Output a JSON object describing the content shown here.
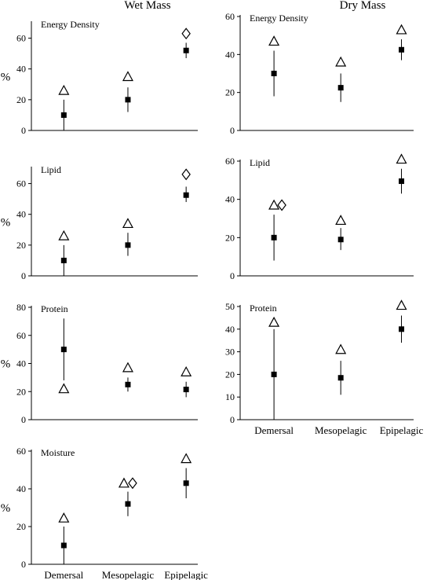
{
  "column_titles": {
    "wet": "Wet Mass",
    "dry": "Dry Mass"
  },
  "categories": [
    "Demersal",
    "Mesopelagic",
    "Epipelagic"
  ],
  "legend_note": "",
  "chart_data": [
    {
      "type": "scatter",
      "column": "Wet Mass",
      "title": "Energy Density",
      "ylabel": "%",
      "ylim": [
        0,
        70
      ],
      "yticks": [
        0,
        20,
        40,
        60
      ],
      "categories": [
        "Demersal",
        "Mesopelagic",
        "Epipelagic"
      ],
      "series": [
        {
          "kind": "mean_range",
          "points": [
            {
              "mean": 10,
              "low": 0,
              "high": 20
            },
            {
              "mean": 20,
              "low": 12,
              "high": 28
            },
            {
              "mean": 52,
              "low": 47,
              "high": 57
            }
          ]
        },
        {
          "kind": "triangle",
          "points": [
            {
              "cat": 0,
              "y": 26
            },
            {
              "cat": 1,
              "y": 35
            }
          ]
        },
        {
          "kind": "diamond",
          "points": [
            {
              "cat": 2,
              "y": 63
            }
          ]
        }
      ]
    },
    {
      "type": "scatter",
      "column": "Dry Mass",
      "title": "Energy Density",
      "ylabel": "",
      "ylim": [
        0,
        60
      ],
      "yticks": [
        0,
        20,
        40,
        60
      ],
      "categories": [
        "Demersal",
        "Mesopelagic",
        "Epipelagic"
      ],
      "series": [
        {
          "kind": "mean_range",
          "points": [
            {
              "mean": 30,
              "low": 18,
              "high": 42
            },
            {
              "mean": 22.5,
              "low": 15,
              "high": 30
            },
            {
              "mean": 42.5,
              "low": 37,
              "high": 48
            }
          ]
        },
        {
          "kind": "triangle",
          "points": [
            {
              "cat": 0,
              "y": 47
            },
            {
              "cat": 1,
              "y": 36
            },
            {
              "cat": 2,
              "y": 53
            }
          ]
        }
      ]
    },
    {
      "type": "scatter",
      "column": "Wet Mass",
      "title": "Lipid",
      "ylabel": "%",
      "ylim": [
        0,
        70
      ],
      "yticks": [
        0,
        20,
        40,
        60
      ],
      "categories": [
        "Demersal",
        "Mesopelagic",
        "Epipelagic"
      ],
      "series": [
        {
          "kind": "mean_range",
          "points": [
            {
              "mean": 10,
              "low": 0,
              "high": 20
            },
            {
              "mean": 20,
              "low": 13,
              "high": 28
            },
            {
              "mean": 52.5,
              "low": 48,
              "high": 58
            }
          ]
        },
        {
          "kind": "triangle",
          "points": [
            {
              "cat": 0,
              "y": 26
            },
            {
              "cat": 1,
              "y": 34
            }
          ]
        },
        {
          "kind": "diamond",
          "points": [
            {
              "cat": 2,
              "y": 66
            }
          ]
        }
      ]
    },
    {
      "type": "scatter",
      "column": "Dry Mass",
      "title": "Lipid",
      "ylabel": "",
      "ylim": [
        0,
        60
      ],
      "yticks": [
        0,
        20,
        40,
        60
      ],
      "categories": [
        "Demersal",
        "Mesopelagic",
        "Epipelagic"
      ],
      "series": [
        {
          "kind": "mean_range",
          "points": [
            {
              "mean": 20,
              "low": 8,
              "high": 32
            },
            {
              "mean": 19,
              "low": 13.5,
              "high": 25
            },
            {
              "mean": 49.5,
              "low": 43,
              "high": 56
            }
          ]
        },
        {
          "kind": "triangle",
          "points": [
            {
              "cat": 0,
              "y": 37
            },
            {
              "cat": 1,
              "y": 29
            },
            {
              "cat": 2,
              "y": 61
            }
          ]
        },
        {
          "kind": "diamond",
          "points": [
            {
              "cat": 0,
              "y": 37,
              "dx": 10
            }
          ]
        }
      ]
    },
    {
      "type": "scatter",
      "column": "Wet Mass",
      "title": "Protein",
      "ylabel": "%",
      "ylim": [
        0,
        80
      ],
      "yticks": [
        0,
        20,
        40,
        60,
        80
      ],
      "categories": [
        "Demersal",
        "Mesopelagic",
        "Epipelagic"
      ],
      "series": [
        {
          "kind": "mean_range",
          "points": [
            {
              "mean": 50,
              "low": 28,
              "high": 72
            },
            {
              "mean": 25,
              "low": 20,
              "high": 30
            },
            {
              "mean": 21.5,
              "low": 16,
              "high": 27
            }
          ]
        },
        {
          "kind": "triangle",
          "points": [
            {
              "cat": 0,
              "y": 22
            },
            {
              "cat": 1,
              "y": 37
            },
            {
              "cat": 2,
              "y": 34
            }
          ]
        }
      ]
    },
    {
      "type": "scatter",
      "column": "Dry Mass",
      "title": "Protein",
      "ylabel": "",
      "ylim": [
        0,
        50
      ],
      "yticks": [
        0,
        10,
        20,
        30,
        40,
        50
      ],
      "categories": [
        "Demersal",
        "Mesopelagic",
        "Epipelagic"
      ],
      "show_categories": true,
      "series": [
        {
          "kind": "mean_range",
          "points": [
            {
              "mean": 20,
              "low": 0,
              "high": 40
            },
            {
              "mean": 18.5,
              "low": 11,
              "high": 26
            },
            {
              "mean": 40,
              "low": 34,
              "high": 46
            }
          ]
        },
        {
          "kind": "triangle",
          "points": [
            {
              "cat": 0,
              "y": 43
            },
            {
              "cat": 1,
              "y": 31
            },
            {
              "cat": 2,
              "y": 50.5
            }
          ]
        }
      ]
    },
    {
      "type": "scatter",
      "column": "Wet Mass",
      "title": "Moisture",
      "ylabel": "%",
      "ylim": [
        0,
        60
      ],
      "yticks": [
        0,
        20,
        40,
        60
      ],
      "categories": [
        "Demersal",
        "Mesopelagic",
        "Epipelagic"
      ],
      "show_categories": true,
      "series": [
        {
          "kind": "mean_range",
          "points": [
            {
              "mean": 10,
              "low": 0,
              "high": 20
            },
            {
              "mean": 32,
              "low": 25.5,
              "high": 38.5
            },
            {
              "mean": 43,
              "low": 35,
              "high": 51
            }
          ]
        },
        {
          "kind": "triangle",
          "points": [
            {
              "cat": 0,
              "y": 24.5
            },
            {
              "cat": 1,
              "y": 43,
              "dx": -5
            },
            {
              "cat": 2,
              "y": 56
            }
          ]
        },
        {
          "kind": "diamond",
          "points": [
            {
              "cat": 1,
              "y": 43,
              "dx": 6
            }
          ]
        }
      ]
    }
  ]
}
